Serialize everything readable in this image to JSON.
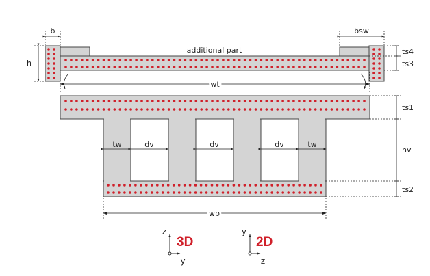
{
  "labels": {
    "additional_part": "additional part",
    "b": "b",
    "bsw": "bsw",
    "h": "h",
    "ts4": "ts4",
    "ts3": "ts3",
    "wt": "wt",
    "ts1": "ts1",
    "tw_left": "tw",
    "dv_1": "dv",
    "dv_2": "dv",
    "dv_3": "dv",
    "tw_right": "tw",
    "hv": "hv",
    "ts2": "ts2",
    "wb": "wb"
  },
  "axes_3d": {
    "vertical": "z",
    "horizontal": "y",
    "mode": "3D"
  },
  "axes_2d": {
    "vertical": "y",
    "horizontal": "z",
    "mode": "2D"
  },
  "colors": {
    "concrete_fill": "#d4d4d4",
    "outline": "#444444",
    "rebar": "#d0202a",
    "mode_label": "#d0202a",
    "dimension_line": "#222222"
  }
}
